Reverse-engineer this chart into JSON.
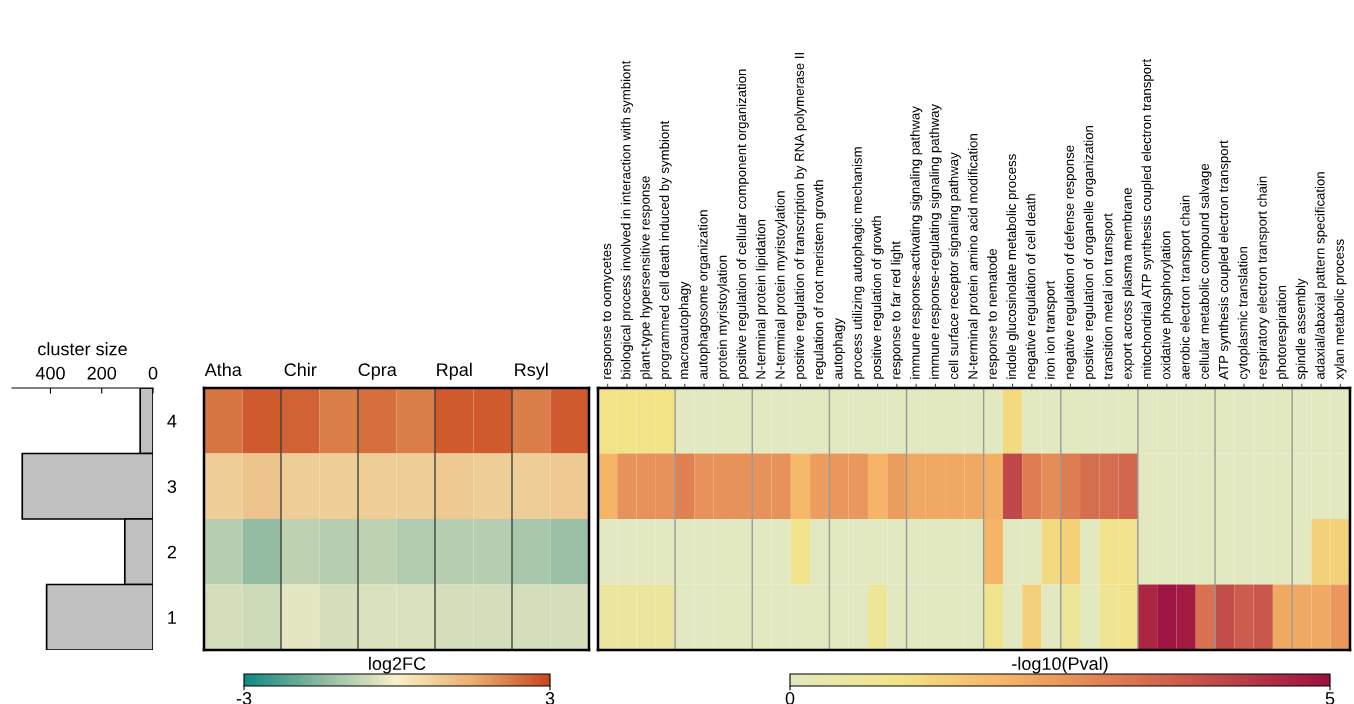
{
  "chart_data": [
    {
      "type": "bar",
      "orientation": "horizontal",
      "title": "cluster size",
      "categories": [
        "4",
        "3",
        "2",
        "1"
      ],
      "values": [
        50,
        510,
        110,
        415
      ],
      "color": "#c0c0c0",
      "xlim": [
        550,
        0
      ],
      "xticks": [
        400,
        200,
        0
      ],
      "grid": false
    },
    {
      "type": "heatmap",
      "categories": [
        "Atha",
        null,
        "Chir",
        null,
        "Cpra",
        null,
        "Rpal",
        null,
        "Rsyl",
        null
      ],
      "y_categories": [
        "4",
        "3",
        "2",
        "1"
      ],
      "tick_labels": "x",
      "cells": [
        [
          2.3,
          2.7,
          2.6,
          2.2,
          2.4,
          2.2,
          2.7,
          2.7,
          2.2,
          2.7
        ],
        [
          0.8,
          1.0,
          0.8,
          0.8,
          0.8,
          0.8,
          0.9,
          0.8,
          0.8,
          0.9
        ],
        [
          -0.9,
          -1.4,
          -0.8,
          -0.9,
          -0.8,
          -1.0,
          -0.9,
          -0.9,
          -1.1,
          -1.3
        ],
        [
          -0.5,
          -0.6,
          -0.3,
          -0.5,
          -0.4,
          -0.4,
          -0.5,
          -0.5,
          -0.5,
          -0.5
        ]
      ],
      "clim": [
        -3,
        3
      ],
      "cticks": [
        -3,
        3
      ],
      "clabel": "log2FC",
      "grid": "x"
    },
    {
      "type": "heatmap",
      "categories": [
        "response to oomycetes",
        "biological process involved in interaction with symbiont",
        "plant-type hypersensitive response",
        "programmed cell death induced by symbiont",
        "macroautophagy",
        "autophagosome organization",
        "protein myristoylation",
        "positive regulation of cellular component organization",
        "N-terminal protein lipidation",
        "N-terminal protein myristoylation",
        "positive regulation of transcription by RNA polymerase II",
        "regulation of root meristem growth",
        "autophagy",
        "process utilizing autophagic mechanism",
        "positive regulation of growth",
        "response to far red light",
        "immune response-activating signaling pathway",
        "immune response-regulating signaling pathway",
        "cell surface receptor signaling pathway",
        "N-terminal protein amino acid modification",
        "response to nematode",
        "indole glucosinolate metabolic process",
        "negative regulation of cell death",
        "iron ion transport",
        "negative regulation of defense response",
        "positive regulation of organelle organization",
        "transition metal ion transport",
        "export across plasma membrane",
        "mitochondrial ATP synthesis coupled electron transport",
        "oxidative phosphorylation",
        "aerobic electron transport chain",
        "cellular metabolic compound salvage",
        "ATP synthesis coupled electron transport",
        "cytoplasmic translation",
        "respiratory electron transport chain",
        "photorespiration",
        "spindle assembly",
        "adaxial/abaxial pattern specification",
        "xylan metabolic process"
      ],
      "y_categories": [
        "4",
        "3",
        "2",
        "1"
      ],
      "tick_labels": "x",
      "cells": [
        [
          1.0,
          1.0,
          1.0,
          1.0,
          0,
          0,
          0,
          0,
          0,
          0,
          0,
          0,
          0,
          0,
          0,
          0,
          0,
          0,
          0,
          0,
          0,
          1.2,
          0,
          0,
          0,
          0,
          0,
          0,
          0,
          0,
          0,
          0,
          0,
          0,
          0,
          0,
          0,
          0,
          0
        ],
        [
          2.0,
          2.6,
          2.6,
          2.6,
          2.9,
          2.6,
          2.6,
          2.6,
          2.6,
          2.6,
          1.9,
          2.4,
          2.5,
          2.5,
          2.0,
          2.4,
          2.2,
          2.2,
          2.2,
          2.2,
          2.1,
          4.0,
          3.0,
          2.7,
          3.0,
          3.3,
          3.3,
          3.4,
          0,
          0,
          0,
          0,
          0,
          0,
          0,
          0,
          0,
          0,
          0
        ],
        [
          0,
          0,
          0,
          0,
          0,
          0,
          0,
          0,
          0,
          0,
          0.9,
          0,
          0,
          0,
          0,
          0,
          0,
          0,
          0,
          0,
          2.0,
          0,
          0,
          1.2,
          1.4,
          0,
          0.9,
          0.9,
          0,
          0,
          0,
          0,
          0,
          0,
          0,
          0,
          0,
          1.4,
          1.4
        ],
        [
          0.6,
          0.6,
          0.6,
          0.6,
          0,
          0,
          0,
          0,
          0,
          0,
          0,
          0,
          0,
          0,
          0.7,
          0,
          0,
          0,
          0,
          0,
          0.9,
          0,
          1.4,
          0,
          0.7,
          0,
          0.8,
          0.9,
          4.6,
          4.9,
          4.8,
          3.2,
          3.9,
          3.6,
          3.7,
          2.2,
          2.2,
          2.2,
          2.5
        ]
      ],
      "clim": [
        0,
        5
      ],
      "cticks": [
        0,
        5
      ],
      "clabel": "-log10(Pval)"
    }
  ]
}
